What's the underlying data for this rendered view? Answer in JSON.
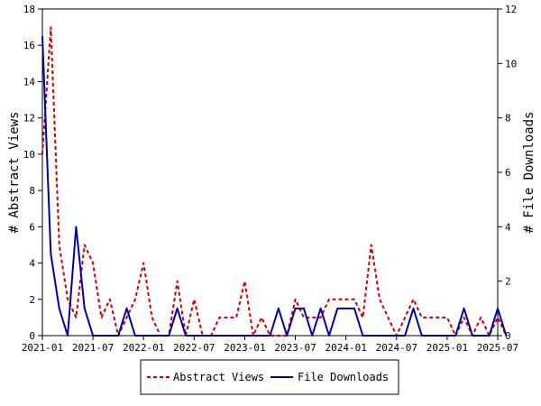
{
  "chart_data": {
    "type": "line",
    "grid": false,
    "legend_placement": "bottom-center",
    "x_tick_labels": [
      "2021-01",
      "2021-07",
      "2022-01",
      "2022-07",
      "2023-01",
      "2023-07",
      "2024-01",
      "2024-07",
      "2025-01",
      "2025-07"
    ],
    "x_range": [
      "2021-01",
      "2025-07"
    ],
    "left_axis": {
      "label": "# Abstract Views",
      "range": [
        0,
        18
      ],
      "ticks": [
        "0",
        "2",
        "4",
        "6",
        "8",
        "10",
        "12",
        "14",
        "16",
        "18"
      ]
    },
    "right_axis": {
      "label": "# File Downloads",
      "range": [
        0,
        12
      ],
      "ticks": [
        "0",
        "2",
        "4",
        "6",
        "8",
        "10",
        "12"
      ]
    },
    "series": [
      {
        "name": "Abstract Views",
        "axis": "left",
        "color": "#cc0000",
        "dash": true,
        "points": [
          [
            "2021-01",
            10
          ],
          [
            "2021-02",
            17
          ],
          [
            "2021-03",
            5
          ],
          [
            "2021-04",
            2
          ],
          [
            "2021-05",
            1
          ],
          [
            "2021-06",
            5
          ],
          [
            "2021-07",
            4
          ],
          [
            "2021-08",
            1
          ],
          [
            "2021-09",
            2
          ],
          [
            "2021-10",
            0
          ],
          [
            "2021-11",
            1
          ],
          [
            "2021-12",
            2
          ],
          [
            "2022-01",
            4
          ],
          [
            "2022-02",
            1
          ],
          [
            "2022-03",
            0
          ],
          [
            "2022-04",
            0
          ],
          [
            "2022-05",
            3
          ],
          [
            "2022-06",
            0
          ],
          [
            "2022-07",
            2
          ],
          [
            "2022-08",
            0
          ],
          [
            "2022-09",
            0
          ],
          [
            "2022-10",
            1
          ],
          [
            "2022-11",
            1
          ],
          [
            "2022-12",
            1
          ],
          [
            "2023-01",
            3
          ],
          [
            "2023-02",
            0
          ],
          [
            "2023-03",
            1
          ],
          [
            "2023-04",
            0
          ],
          [
            "2023-05",
            0
          ],
          [
            "2023-06",
            0
          ],
          [
            "2023-07",
            2
          ],
          [
            "2023-08",
            1
          ],
          [
            "2023-09",
            1
          ],
          [
            "2023-10",
            1
          ],
          [
            "2023-11",
            2
          ],
          [
            "2023-12",
            2
          ],
          [
            "2024-01",
            2
          ],
          [
            "2024-02",
            2
          ],
          [
            "2024-03",
            1
          ],
          [
            "2024-04",
            5
          ],
          [
            "2024-05",
            2
          ],
          [
            "2024-06",
            1
          ],
          [
            "2024-07",
            0
          ],
          [
            "2024-08",
            1
          ],
          [
            "2024-09",
            2
          ],
          [
            "2024-10",
            1
          ],
          [
            "2024-11",
            1
          ],
          [
            "2024-12",
            1
          ],
          [
            "2025-01",
            1
          ],
          [
            "2025-02",
            0
          ],
          [
            "2025-03",
            1
          ],
          [
            "2025-04",
            0
          ],
          [
            "2025-05",
            1
          ],
          [
            "2025-06",
            0
          ],
          [
            "2025-07",
            1
          ],
          [
            "2025-08",
            0
          ]
        ]
      },
      {
        "name": "File Downloads",
        "axis": "right",
        "color": "#0000aa",
        "dash": false,
        "points": [
          [
            "2021-01",
            11
          ],
          [
            "2021-02",
            3
          ],
          [
            "2021-03",
            1
          ],
          [
            "2021-04",
            0
          ],
          [
            "2021-05",
            4
          ],
          [
            "2021-06",
            1
          ],
          [
            "2021-07",
            0
          ],
          [
            "2021-08",
            0
          ],
          [
            "2021-09",
            0
          ],
          [
            "2021-10",
            0
          ],
          [
            "2021-11",
            1
          ],
          [
            "2021-12",
            0
          ],
          [
            "2022-01",
            0
          ],
          [
            "2022-02",
            0
          ],
          [
            "2022-03",
            0
          ],
          [
            "2022-04",
            0
          ],
          [
            "2022-05",
            1
          ],
          [
            "2022-06",
            0
          ],
          [
            "2022-07",
            0
          ],
          [
            "2022-08",
            0
          ],
          [
            "2022-09",
            0
          ],
          [
            "2022-10",
            0
          ],
          [
            "2022-11",
            0
          ],
          [
            "2022-12",
            0
          ],
          [
            "2023-01",
            0
          ],
          [
            "2023-02",
            0
          ],
          [
            "2023-03",
            0
          ],
          [
            "2023-04",
            0
          ],
          [
            "2023-05",
            1
          ],
          [
            "2023-06",
            0
          ],
          [
            "2023-07",
            1
          ],
          [
            "2023-08",
            1
          ],
          [
            "2023-09",
            0
          ],
          [
            "2023-10",
            1
          ],
          [
            "2023-11",
            0
          ],
          [
            "2023-12",
            1
          ],
          [
            "2024-01",
            1
          ],
          [
            "2024-02",
            1
          ],
          [
            "2024-03",
            0
          ],
          [
            "2024-04",
            0
          ],
          [
            "2024-05",
            0
          ],
          [
            "2024-06",
            0
          ],
          [
            "2024-07",
            0
          ],
          [
            "2024-08",
            0
          ],
          [
            "2024-09",
            1
          ],
          [
            "2024-10",
            0
          ],
          [
            "2024-11",
            0
          ],
          [
            "2024-12",
            0
          ],
          [
            "2025-01",
            0
          ],
          [
            "2025-02",
            0
          ],
          [
            "2025-03",
            1
          ],
          [
            "2025-04",
            0
          ],
          [
            "2025-05",
            0
          ],
          [
            "2025-06",
            0
          ],
          [
            "2025-07",
            1
          ],
          [
            "2025-08",
            0
          ]
        ]
      }
    ]
  }
}
